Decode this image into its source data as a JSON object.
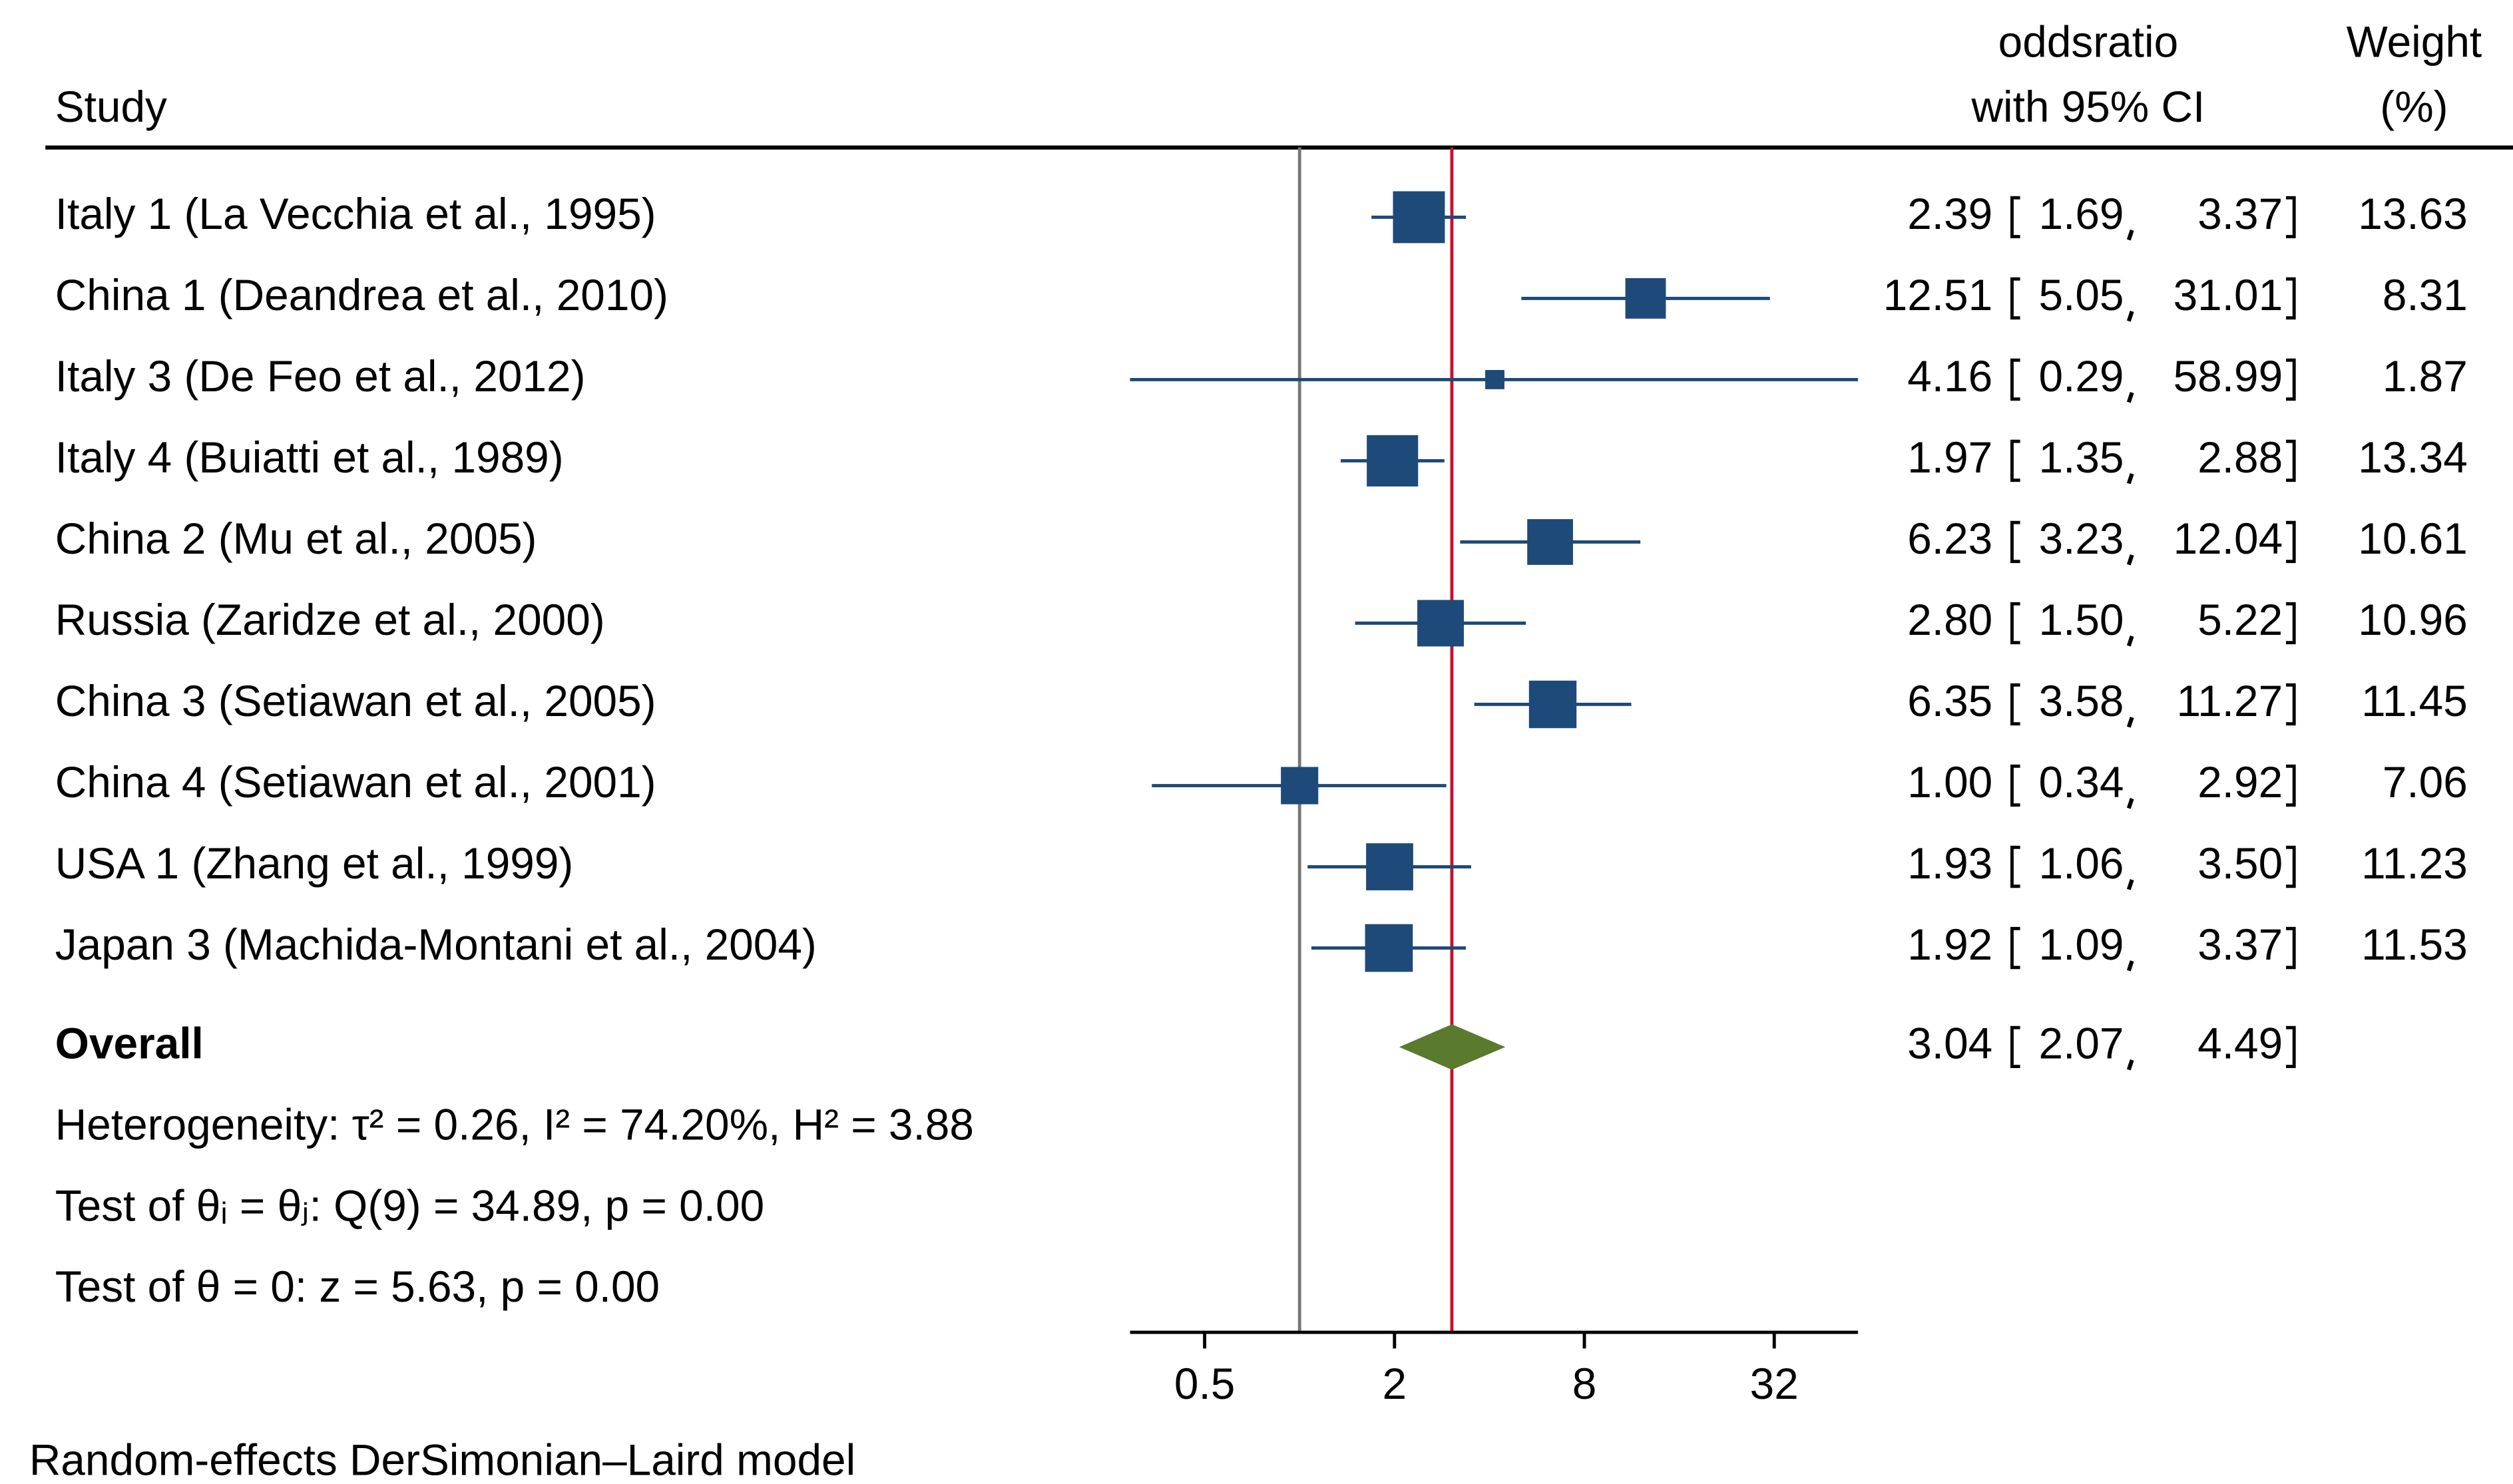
{
  "chart_data": {
    "type": "forest",
    "header": {
      "study_label": "Study",
      "effect_label": [
        "oddsratio",
        "with 95% CI"
      ],
      "weight_label": [
        "Weight",
        "(%)"
      ]
    },
    "categories": [
      "Italy 1 (La Vecchia et al., 1995)",
      "China 1 (Deandrea et al., 2010)",
      "Italy 3 (De Feo et al., 2012)",
      "Italy 4 (Buiatti et al., 1989)",
      "China 2 (Mu et al., 2005)",
      "Russia (Zaridze et al., 2000)",
      "China 3 (Setiawan et al., 2005)",
      "China 4 (Setiawan et al., 2001)",
      "USA 1 (Zhang et al., 1999)",
      "Japan 3 (Machida-Montani et al., 2004)"
    ],
    "estimates": {
      "values": [
        2.39,
        12.51,
        4.16,
        1.97,
        6.23,
        2.8,
        6.35,
        1.0,
        1.93,
        1.92
      ],
      "value_labels": [
        "2.39",
        "12.51",
        "4.16",
        "1.97",
        "6.23",
        "2.80",
        "6.35",
        "1.00",
        "1.93",
        "1.92"
      ]
    },
    "ci_low": {
      "values": [
        1.69,
        5.05,
        0.29,
        1.35,
        3.23,
        1.5,
        3.58,
        0.34,
        1.06,
        1.09
      ],
      "value_labels": [
        "1.69",
        "5.05",
        "0.29",
        "1.35",
        "3.23",
        "1.50",
        "3.58",
        "0.34",
        "1.06",
        "1.09"
      ]
    },
    "ci_high": {
      "values": [
        3.37,
        31.01,
        58.99,
        2.88,
        12.04,
        5.22,
        11.27,
        2.92,
        3.5,
        3.37
      ],
      "value_labels": [
        "3.37",
        "31.01",
        "58.99",
        "2.88",
        "12.04",
        "5.22",
        "11.27",
        "2.92",
        "3.50",
        "3.37"
      ]
    },
    "weights": {
      "values": [
        13.63,
        8.31,
        1.87,
        13.34,
        10.61,
        10.96,
        11.45,
        7.06,
        11.23,
        11.53
      ],
      "value_labels": [
        "13.63",
        "8.31",
        "1.87",
        "13.34",
        "10.61",
        "10.96",
        "11.45",
        "7.06",
        "11.23",
        "11.53"
      ]
    },
    "overall": {
      "name": "Overall",
      "estimate": {
        "value": 3.04,
        "label": "3.04"
      },
      "ci_low": {
        "value": 2.07,
        "label": "2.07"
      },
      "ci_high": {
        "value": 4.49,
        "label": "4.49"
      }
    },
    "stats": [
      "Heterogeneity: τ² = 0.26, I² = 74.20%, H² = 3.88",
      "Test of θᵢ = θⱼ: Q(9) = 34.89, p = 0.00",
      "Test of θ = 0: z = 5.63, p = 0.00"
    ],
    "note": "Random-effects DerSimonian–Laird model",
    "log_scale": true,
    "xlim": [
      0.29,
      58.99
    ],
    "xticks": [
      0.5,
      2,
      8,
      32
    ],
    "null_line": 1,
    "marker_color": "#1d4a78",
    "diamond_color": "#5a7a2e",
    "overall_line_color": "#c8102e",
    "null_line_color": "#777777"
  }
}
